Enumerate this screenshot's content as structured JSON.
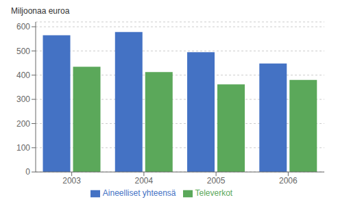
{
  "chart_data": {
    "type": "bar",
    "categories": [
      "2003",
      "2004",
      "2005",
      "2006"
    ],
    "series": [
      {
        "name": "Aineelliset yhteensä",
        "color": "#4472C4",
        "values": [
          565,
          578,
          495,
          448
        ]
      },
      {
        "name": "Televerkot",
        "color": "#5BA85A",
        "values": [
          435,
          413,
          362,
          380
        ]
      }
    ],
    "ylabel": "Miljoonaa euroa",
    "ylim": [
      0,
      620
    ],
    "yticks": [
      0,
      100,
      200,
      300,
      400,
      500,
      600
    ],
    "grid": true,
    "legend": "bottom"
  }
}
